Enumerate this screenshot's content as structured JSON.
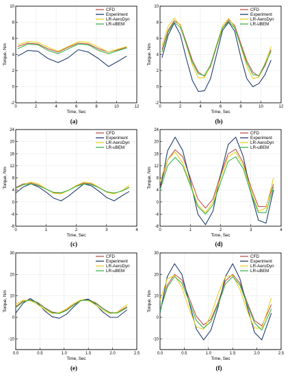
{
  "colors": {
    "CFD": "#c0504d",
    "Experiment": "#1f3b6e",
    "LR-AeroDyn": "#e6d21e",
    "LR-uBEM": "#3cb44b"
  },
  "chart_data": [
    {
      "type": "line",
      "panel_label": "(a)",
      "xlabel": "Time, Sec",
      "ylabel": "Torque, Nm",
      "xlim": [
        0,
        12
      ],
      "ylim": [
        -2,
        10
      ],
      "xticks": [
        0,
        2,
        4,
        6,
        8,
        10,
        12
      ],
      "yticks": [
        -2,
        0,
        2,
        4,
        6,
        8,
        10
      ],
      "grid": true,
      "legend": "top-right",
      "x": [
        0.2,
        1.2,
        2.2,
        3.2,
        4.2,
        5.2,
        6.2,
        7.2,
        8.2,
        9.2,
        10.2,
        11.0
      ],
      "series": [
        {
          "name": "CFD",
          "values": [
            5.0,
            5.4,
            5.3,
            4.7,
            4.3,
            4.9,
            5.4,
            5.3,
            4.7,
            4.3,
            4.6,
            4.9
          ]
        },
        {
          "name": "Experiment",
          "values": [
            3.8,
            4.5,
            4.4,
            3.5,
            3.0,
            3.6,
            4.6,
            4.3,
            3.5,
            2.5,
            3.2,
            3.8
          ]
        },
        {
          "name": "LR-AeroDyn",
          "values": [
            5.2,
            5.6,
            5.5,
            4.9,
            4.4,
            5.0,
            5.6,
            5.5,
            4.9,
            4.3,
            4.7,
            5.0
          ]
        },
        {
          "name": "LR-uBEM",
          "values": [
            4.7,
            5.3,
            5.2,
            4.5,
            4.1,
            4.7,
            5.3,
            5.2,
            4.5,
            4.1,
            4.5,
            4.8
          ]
        }
      ]
    },
    {
      "type": "line",
      "panel_label": "(b)",
      "xlabel": "Time, Sec",
      "ylabel": "Torque, Nm",
      "xlim": [
        0,
        12
      ],
      "ylim": [
        -2,
        10
      ],
      "xticks": [
        0,
        2,
        4,
        6,
        8,
        10,
        12
      ],
      "yticks": [
        -2,
        0,
        2,
        4,
        6,
        8,
        10
      ],
      "grid": true,
      "legend": "top-right",
      "x": [
        0.2,
        0.8,
        1.4,
        2.0,
        2.6,
        3.2,
        3.8,
        4.4,
        5.0,
        5.6,
        6.2,
        6.8,
        7.4,
        8.0,
        8.6,
        9.2,
        9.8,
        10.4,
        11.0
      ],
      "series": [
        {
          "name": "CFD",
          "values": [
            4.6,
            7.0,
            8.2,
            7.7,
            5.5,
            3.3,
            1.8,
            1.3,
            2.5,
            5.0,
            7.3,
            8.3,
            7.6,
            5.4,
            3.2,
            1.8,
            1.3,
            2.6,
            4.6
          ]
        },
        {
          "name": "Experiment",
          "values": [
            3.6,
            6.4,
            7.9,
            6.5,
            3.5,
            0.8,
            -0.6,
            -0.5,
            1.0,
            4.0,
            7.0,
            8.0,
            6.9,
            3.7,
            1.0,
            0.0,
            0.4,
            1.5,
            3.3
          ]
        },
        {
          "name": "LR-AeroDyn",
          "values": [
            5.1,
            7.5,
            8.5,
            7.6,
            5.2,
            2.7,
            1.1,
            1.1,
            2.7,
            5.2,
            7.6,
            8.5,
            7.4,
            5.0,
            2.5,
            1.0,
            1.2,
            2.9,
            5.0
          ]
        },
        {
          "name": "LR-uBEM",
          "values": [
            4.3,
            6.8,
            8.0,
            7.4,
            5.3,
            3.0,
            1.6,
            1.4,
            2.7,
            5.1,
            7.3,
            8.1,
            7.3,
            5.1,
            2.9,
            1.5,
            1.4,
            2.8,
            4.4
          ]
        }
      ]
    },
    {
      "type": "line",
      "panel_label": "(c)",
      "xlabel": "Time, Sec",
      "ylabel": "Torque, Nm",
      "xlim": [
        0,
        4
      ],
      "ylim": [
        -8,
        24
      ],
      "xticks": [
        0,
        1,
        2,
        3,
        4
      ],
      "yticks": [
        -8,
        -4,
        0,
        4,
        8,
        12,
        16,
        20,
        24
      ],
      "grid": true,
      "legend": "top-right",
      "x": [
        0.0,
        0.25,
        0.5,
        0.75,
        1.0,
        1.25,
        1.5,
        1.75,
        2.0,
        2.25,
        2.5,
        2.75,
        3.0,
        3.25,
        3.5,
        3.75
      ],
      "series": [
        {
          "name": "CFD",
          "values": [
            4.8,
            6.0,
            6.3,
            5.6,
            4.3,
            3.1,
            3.0,
            3.9,
            5.3,
            6.3,
            6.0,
            4.8,
            3.4,
            2.9,
            3.6,
            4.9
          ]
        },
        {
          "name": "Experiment",
          "values": [
            3.0,
            5.0,
            6.0,
            5.0,
            3.3,
            1.3,
            0.4,
            2.0,
            4.0,
            6.0,
            5.4,
            3.6,
            1.5,
            0.4,
            2.0,
            3.5
          ]
        },
        {
          "name": "LR-AeroDyn",
          "values": [
            4.5,
            5.8,
            6.6,
            6.0,
            4.4,
            2.9,
            2.7,
            3.9,
            5.5,
            6.6,
            6.3,
            4.9,
            3.2,
            2.7,
            3.7,
            5.5
          ]
        },
        {
          "name": "LR-uBEM",
          "values": [
            4.6,
            5.7,
            6.0,
            5.4,
            4.3,
            3.2,
            3.1,
            3.9,
            5.2,
            6.0,
            5.8,
            4.7,
            3.4,
            3.0,
            3.6,
            4.8
          ]
        }
      ]
    },
    {
      "type": "line",
      "panel_label": "(d)",
      "xlabel": "Time, Sec",
      "ylabel": "Torque, Nm",
      "xlim": [
        0,
        4
      ],
      "ylim": [
        -8,
        24
      ],
      "xticks": [
        0,
        1,
        2,
        3,
        4
      ],
      "yticks": [
        -8,
        -4,
        0,
        4,
        8,
        12,
        16,
        20,
        24
      ],
      "grid": true,
      "legend": "top-right",
      "x": [
        0.0,
        0.25,
        0.5,
        0.75,
        1.0,
        1.25,
        1.5,
        1.75,
        2.0,
        2.25,
        2.5,
        2.75,
        3.0,
        3.25,
        3.5,
        3.75
      ],
      "series": [
        {
          "name": "CFD",
          "values": [
            5.0,
            14.0,
            17.3,
            15.0,
            8.0,
            1.0,
            -2.0,
            1.0,
            9.0,
            16.0,
            17.5,
            13.0,
            5.0,
            -1.5,
            -1.5,
            6.0
          ]
        },
        {
          "name": "Experiment",
          "values": [
            4.0,
            17.0,
            21.5,
            17.0,
            7.0,
            -4.0,
            -7.5,
            -3.0,
            9.0,
            19.0,
            21.5,
            15.0,
            3.0,
            -6.0,
            -7.0,
            4.0
          ]
        },
        {
          "name": "LR-AeroDyn",
          "values": [
            7.0,
            14.0,
            16.5,
            13.0,
            6.0,
            -1.0,
            -3.5,
            0.0,
            8.0,
            15.0,
            16.5,
            12.0,
            4.0,
            -3.0,
            -2.0,
            8.0
          ]
        },
        {
          "name": "LR-uBEM",
          "values": [
            4.0,
            12.0,
            14.8,
            12.0,
            5.5,
            -1.5,
            -4.0,
            -1.0,
            6.5,
            13.5,
            15.0,
            11.0,
            3.0,
            -3.5,
            -3.5,
            5.0
          ]
        }
      ]
    },
    {
      "type": "line",
      "panel_label": "(e)",
      "xlabel": "Time, Sec",
      "ylabel": "Torque, Nm",
      "xlim": [
        0,
        2.5
      ],
      "ylim": [
        -15,
        30
      ],
      "xticks": [
        0.0,
        0.5,
        1.0,
        1.5,
        2.0,
        2.5
      ],
      "yticks": [
        -10,
        0,
        10,
        20,
        30
      ],
      "grid": true,
      "legend": "top-right",
      "x": [
        0.0,
        0.15,
        0.3,
        0.45,
        0.6,
        0.75,
        0.9,
        1.05,
        1.2,
        1.35,
        1.5,
        1.65,
        1.8,
        1.95,
        2.1,
        2.3
      ],
      "series": [
        {
          "name": "CFD",
          "values": [
            5.0,
            7.5,
            8.2,
            7.0,
            4.5,
            2.5,
            2.0,
            3.5,
            6.0,
            8.0,
            8.3,
            6.8,
            4.2,
            2.2,
            2.2,
            5.0
          ]
        },
        {
          "name": "Experiment",
          "values": [
            2.0,
            6.5,
            8.8,
            6.5,
            3.0,
            0.3,
            -0.4,
            1.5,
            5.0,
            8.0,
            8.5,
            6.0,
            2.5,
            0.0,
            0.0,
            3.5
          ]
        },
        {
          "name": "LR-AeroDyn",
          "values": [
            6.0,
            8.0,
            7.8,
            6.0,
            3.5,
            1.8,
            2.2,
            4.0,
            6.5,
            8.2,
            7.8,
            5.8,
            3.2,
            1.8,
            2.5,
            6.0
          ]
        },
        {
          "name": "LR-uBEM",
          "values": [
            4.5,
            7.2,
            8.0,
            6.8,
            4.2,
            2.2,
            1.8,
            3.2,
            5.8,
            7.8,
            8.0,
            6.5,
            4.0,
            2.0,
            2.0,
            4.5
          ]
        }
      ]
    },
    {
      "type": "line",
      "panel_label": "(f)",
      "xlabel": "Time, Sec",
      "ylabel": "Torque, Nm",
      "xlim": [
        0,
        2.5
      ],
      "ylim": [
        -15,
        30
      ],
      "xticks": [
        0.0,
        0.5,
        1.0,
        1.5,
        2.0,
        2.5
      ],
      "yticks": [
        -10,
        0,
        10,
        20,
        30
      ],
      "grid": true,
      "legend": "top-right",
      "x": [
        0.0,
        0.15,
        0.3,
        0.45,
        0.6,
        0.75,
        0.9,
        1.05,
        1.2,
        1.35,
        1.5,
        1.65,
        1.8,
        1.95,
        2.1,
        2.3
      ],
      "series": [
        {
          "name": "CFD",
          "values": [
            3.0,
            15.0,
            20.0,
            17.5,
            9.0,
            0.5,
            -3.5,
            -1.0,
            7.0,
            17.0,
            20.0,
            16.0,
            7.0,
            -1.5,
            -4.0,
            6.0
          ]
        },
        {
          "name": "Experiment",
          "values": [
            2.0,
            19.0,
            25.0,
            20.0,
            7.0,
            -5.5,
            -10.5,
            -6.0,
            5.0,
            19.0,
            25.0,
            18.0,
            5.0,
            -7.0,
            -10.5,
            2.0
          ]
        },
        {
          "name": "LR-AeroDyn",
          "values": [
            8.0,
            18.0,
            19.5,
            14.0,
            4.0,
            -4.5,
            -5.5,
            1.0,
            11.0,
            19.0,
            19.5,
            13.0,
            3.0,
            -5.0,
            -5.0,
            9.0
          ]
        },
        {
          "name": "LR-uBEM",
          "values": [
            3.0,
            14.0,
            19.0,
            16.0,
            7.5,
            -1.5,
            -5.0,
            -2.0,
            6.0,
            15.5,
            19.0,
            15.0,
            6.0,
            -2.5,
            -6.0,
            4.0
          ]
        }
      ]
    }
  ]
}
